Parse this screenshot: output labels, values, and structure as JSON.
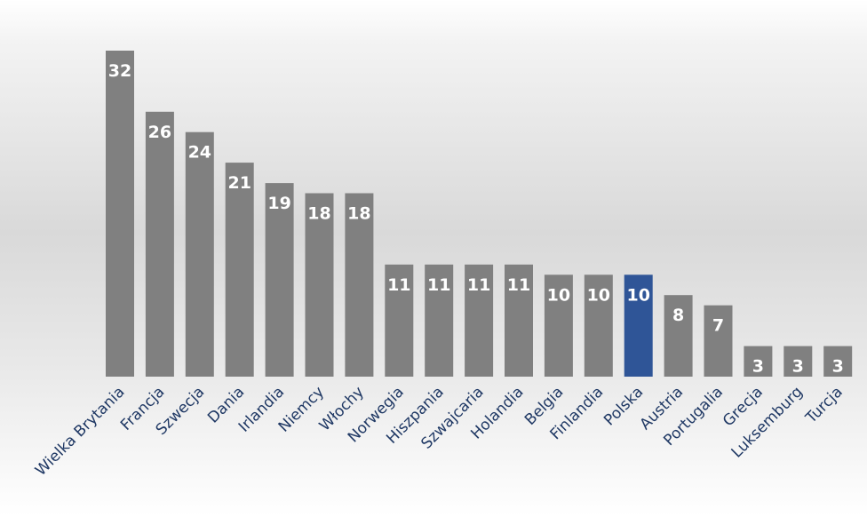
{
  "chart_data": {
    "type": "bar",
    "title": "",
    "xlabel": "",
    "ylabel": "",
    "ylim": [
      0,
      34
    ],
    "grid": false,
    "legend": "none",
    "categories": [
      "Wielka Brytania",
      "Francja",
      "Szwecja",
      "Dania",
      "Irlandia",
      "Niemcy",
      "Włochy",
      "Norwegia",
      "Hiszpania",
      "Szwajcaria",
      "Holandia",
      "Belgia",
      "Finlandia",
      "Polska",
      "Austria",
      "Portugalia",
      "Grecja",
      "Luksemburg",
      "Turcja"
    ],
    "values": [
      32,
      26,
      24,
      21,
      19,
      18,
      18,
      11,
      11,
      11,
      11,
      10,
      10,
      10,
      8,
      7,
      3,
      3,
      3
    ],
    "data_labels": [
      "32",
      "26",
      "24",
      "21",
      "19",
      "18",
      "18",
      "11",
      "11",
      "11",
      "11",
      "10",
      "10",
      "10",
      "8",
      "7",
      "3",
      "3",
      "3"
    ],
    "highlight_category": "Polska",
    "colors": {
      "bar": "#808080",
      "highlight": "#2f5597",
      "data_label": "#ffffff",
      "category_label": "#1f3864"
    }
  }
}
